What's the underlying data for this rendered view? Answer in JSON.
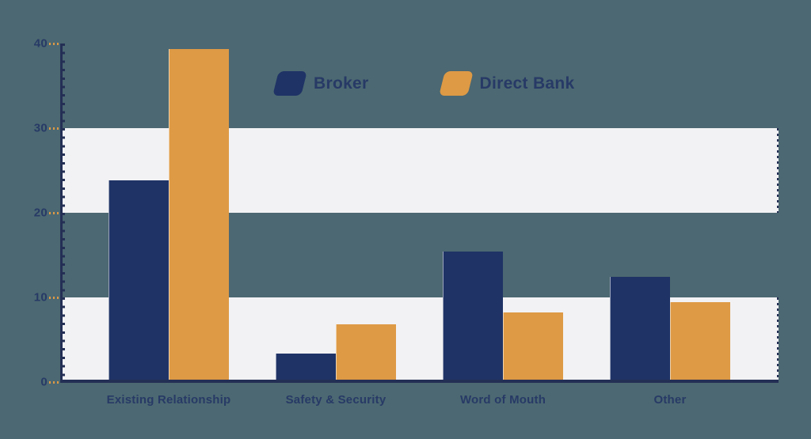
{
  "chart_data": {
    "type": "bar",
    "categories": [
      "Existing Relationship",
      "Safety & Security",
      "Word of Mouth",
      "Other"
    ],
    "series": [
      {
        "name": "Broker",
        "color_key": "broker",
        "values": [
          23.8,
          3.4,
          15.4,
          12.4
        ]
      },
      {
        "name": "Direct Bank",
        "color_key": "direct_bank",
        "values": [
          39.3,
          6.8,
          8.2,
          9.4
        ]
      }
    ],
    "ylim": [
      0,
      40
    ],
    "yticks": [
      0,
      10,
      20,
      30,
      40
    ],
    "bands": [
      [
        0,
        10
      ],
      [
        20,
        30
      ]
    ],
    "legend_position": "top",
    "grid": "horizontal-bands",
    "xlabel": "",
    "ylabel": "",
    "colors": {
      "broker": "#1f3366",
      "direct_bank": "#de9a45",
      "background": "#4c6872",
      "band": "#f2f2f4",
      "text": "#273a66",
      "axis": "#242f55"
    }
  }
}
